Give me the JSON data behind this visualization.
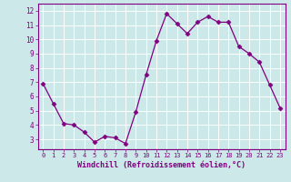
{
  "x": [
    0,
    1,
    2,
    3,
    4,
    5,
    6,
    7,
    8,
    9,
    10,
    11,
    12,
    13,
    14,
    15,
    16,
    17,
    18,
    19,
    20,
    21,
    22,
    23
  ],
  "y": [
    6.9,
    5.5,
    4.1,
    4.0,
    3.5,
    2.8,
    3.2,
    3.1,
    2.7,
    4.9,
    7.5,
    9.9,
    11.8,
    11.1,
    10.4,
    11.2,
    11.6,
    11.2,
    11.2,
    9.5,
    9.0,
    8.4,
    6.8,
    5.2
  ],
  "line_color": "#800080",
  "marker": "D",
  "marker_size": 2.5,
  "xlim": [
    -0.5,
    23.5
  ],
  "ylim": [
    2.3,
    12.5
  ],
  "yticks": [
    3,
    4,
    5,
    6,
    7,
    8,
    9,
    10,
    11,
    12
  ],
  "xticks": [
    0,
    1,
    2,
    3,
    4,
    5,
    6,
    7,
    8,
    9,
    10,
    11,
    12,
    13,
    14,
    15,
    16,
    17,
    18,
    19,
    20,
    21,
    22,
    23
  ],
  "xlabel": "Windchill (Refroidissement éolien,°C)",
  "background_color": "#cce8e8",
  "grid_color": "#aacccc",
  "text_color": "#800080",
  "spine_color": "#800080"
}
